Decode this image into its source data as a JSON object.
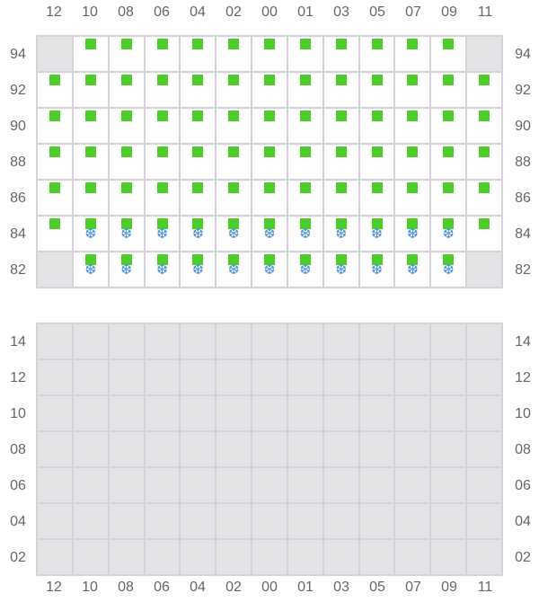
{
  "columns": [
    "12",
    "10",
    "08",
    "06",
    "04",
    "02",
    "00",
    "01",
    "03",
    "05",
    "07",
    "09",
    "11"
  ],
  "colors": {
    "occupied": "#4ccd2a",
    "snowflake": "#4a90e2",
    "empty": "#e4e4e7",
    "grid": "#d4d4d8"
  },
  "icons": {
    "occupied": "green-square-icon",
    "cold": "snowflake-icon"
  },
  "top_grid": {
    "rows": [
      {
        "label": "94",
        "cells": [
          "empty",
          "g",
          "g",
          "g",
          "g",
          "g",
          "g",
          "g",
          "g",
          "g",
          "g",
          "g",
          "empty"
        ]
      },
      {
        "label": "92",
        "cells": [
          "g",
          "g",
          "g",
          "g",
          "g",
          "g",
          "g",
          "g",
          "g",
          "g",
          "g",
          "g",
          "g"
        ]
      },
      {
        "label": "90",
        "cells": [
          "g",
          "g",
          "g",
          "g",
          "g",
          "g",
          "g",
          "g",
          "g",
          "g",
          "g",
          "g",
          "g"
        ]
      },
      {
        "label": "88",
        "cells": [
          "g",
          "g",
          "g",
          "g",
          "g",
          "g",
          "g",
          "g",
          "g",
          "g",
          "g",
          "g",
          "g"
        ]
      },
      {
        "label": "86",
        "cells": [
          "g",
          "g",
          "g",
          "g",
          "g",
          "g",
          "g",
          "g",
          "g",
          "g",
          "g",
          "g",
          "g"
        ]
      },
      {
        "label": "84",
        "cells": [
          "g",
          "gs",
          "gs",
          "gs",
          "gs",
          "gs",
          "gs",
          "gs",
          "gs",
          "gs",
          "gs",
          "gs",
          "g"
        ]
      },
      {
        "label": "82",
        "cells": [
          "empty",
          "gs",
          "gs",
          "gs",
          "gs",
          "gs",
          "gs",
          "gs",
          "gs",
          "gs",
          "gs",
          "gs",
          "empty"
        ]
      }
    ]
  },
  "bottom_grid": {
    "rows": [
      {
        "label": "14",
        "cells": [
          "empty",
          "empty",
          "empty",
          "empty",
          "empty",
          "empty",
          "empty",
          "empty",
          "empty",
          "empty",
          "empty",
          "empty",
          "empty"
        ]
      },
      {
        "label": "12",
        "cells": [
          "empty",
          "empty",
          "empty",
          "empty",
          "empty",
          "empty",
          "empty",
          "empty",
          "empty",
          "empty",
          "empty",
          "empty",
          "empty"
        ]
      },
      {
        "label": "10",
        "cells": [
          "empty",
          "empty",
          "empty",
          "empty",
          "empty",
          "empty",
          "empty",
          "empty",
          "empty",
          "empty",
          "empty",
          "empty",
          "empty"
        ]
      },
      {
        "label": "08",
        "cells": [
          "empty",
          "empty",
          "empty",
          "empty",
          "empty",
          "empty",
          "empty",
          "empty",
          "empty",
          "empty",
          "empty",
          "empty",
          "empty"
        ]
      },
      {
        "label": "06",
        "cells": [
          "empty",
          "empty",
          "empty",
          "empty",
          "empty",
          "empty",
          "empty",
          "empty",
          "empty",
          "empty",
          "empty",
          "empty",
          "empty"
        ]
      },
      {
        "label": "04",
        "cells": [
          "empty",
          "empty",
          "empty",
          "empty",
          "empty",
          "empty",
          "empty",
          "empty",
          "empty",
          "empty",
          "empty",
          "empty",
          "empty"
        ]
      },
      {
        "label": "02",
        "cells": [
          "empty",
          "empty",
          "empty",
          "empty",
          "empty",
          "empty",
          "empty",
          "empty",
          "empty",
          "empty",
          "empty",
          "empty",
          "empty"
        ]
      }
    ]
  }
}
